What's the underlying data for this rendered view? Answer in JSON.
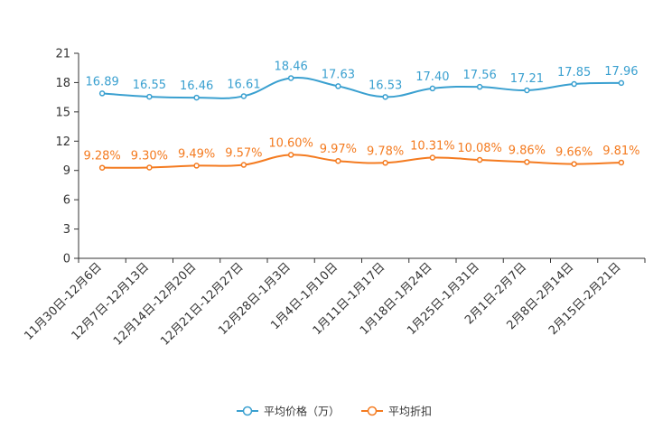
{
  "chart_data": {
    "type": "line",
    "title": "",
    "xlabel": "",
    "ylabel": "",
    "ylim": [
      0,
      21
    ],
    "yticks": [
      0,
      3,
      6,
      9,
      12,
      15,
      18,
      21
    ],
    "grid": false,
    "legend_position": "bottom-center",
    "categories": [
      "11月30日-12月6日",
      "12月7日-12月13日",
      "12月14日-12月20日",
      "12月21日-12月27日",
      "12月28日-1月3日",
      "1月4日-1月10日",
      "1月11日-1月17日",
      "1月18日-1月24日",
      "1月25日-1月31日",
      "2月1日-2月7日",
      "2月8日-2月14日",
      "2月15日-2月21日"
    ],
    "series": [
      {
        "name": "平均价格（万）",
        "color": "#3aa0d0",
        "values": [
          16.89,
          16.55,
          16.46,
          16.61,
          18.46,
          17.63,
          16.53,
          17.4,
          17.56,
          17.21,
          17.85,
          17.96
        ],
        "labels": [
          "16.89",
          "16.55",
          "16.46",
          "16.61",
          "18.46",
          "17.63",
          "16.53",
          "17.40",
          "17.56",
          "17.21",
          "17.85",
          "17.96"
        ]
      },
      {
        "name": "平均折扣",
        "color": "#f47b20",
        "values": [
          9.28,
          9.3,
          9.49,
          9.57,
          10.6,
          9.97,
          9.78,
          10.31,
          10.08,
          9.86,
          9.66,
          9.81
        ],
        "labels": [
          "9.28%",
          "9.30%",
          "9.49%",
          "9.57%",
          "10.60%",
          "9.97%",
          "9.78%",
          "10.31%",
          "10.08%",
          "9.86%",
          "9.66%",
          "9.81%"
        ]
      }
    ]
  }
}
